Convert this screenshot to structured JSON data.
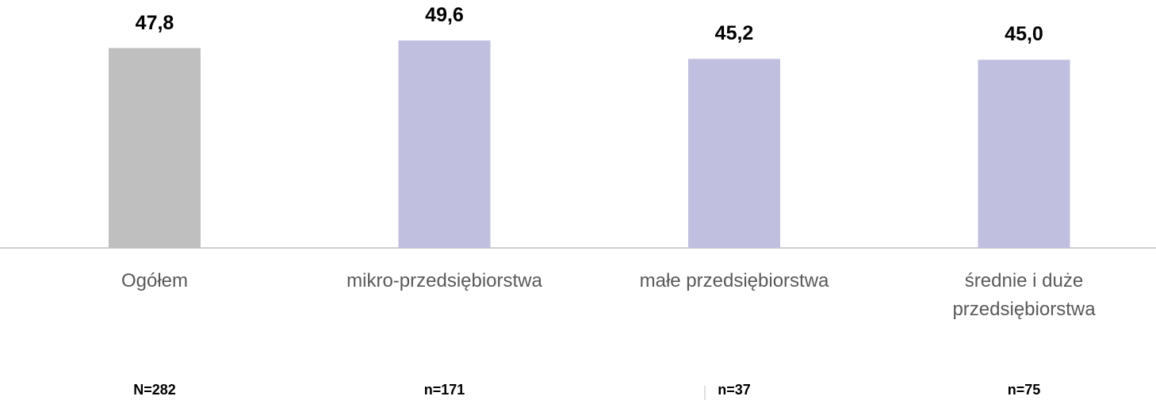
{
  "chart_data": {
    "type": "bar",
    "categories": [
      "Ogółem",
      "mikro-przedsiębiorstwa",
      "małe przedsiębiorstwa",
      "średnie i duże przedsiębiorstwa"
    ],
    "values": [
      47.8,
      49.6,
      45.2,
      45.0
    ],
    "value_labels": [
      "47,8",
      "49,6",
      "45,2",
      "45,0"
    ],
    "colors": [
      "#bfbfbf",
      "#c0bfdf",
      "#c0bfdf",
      "#c0bfdf"
    ],
    "sample_sizes": [
      "N=282",
      "n=171",
      "n=37",
      "n=75"
    ]
  }
}
